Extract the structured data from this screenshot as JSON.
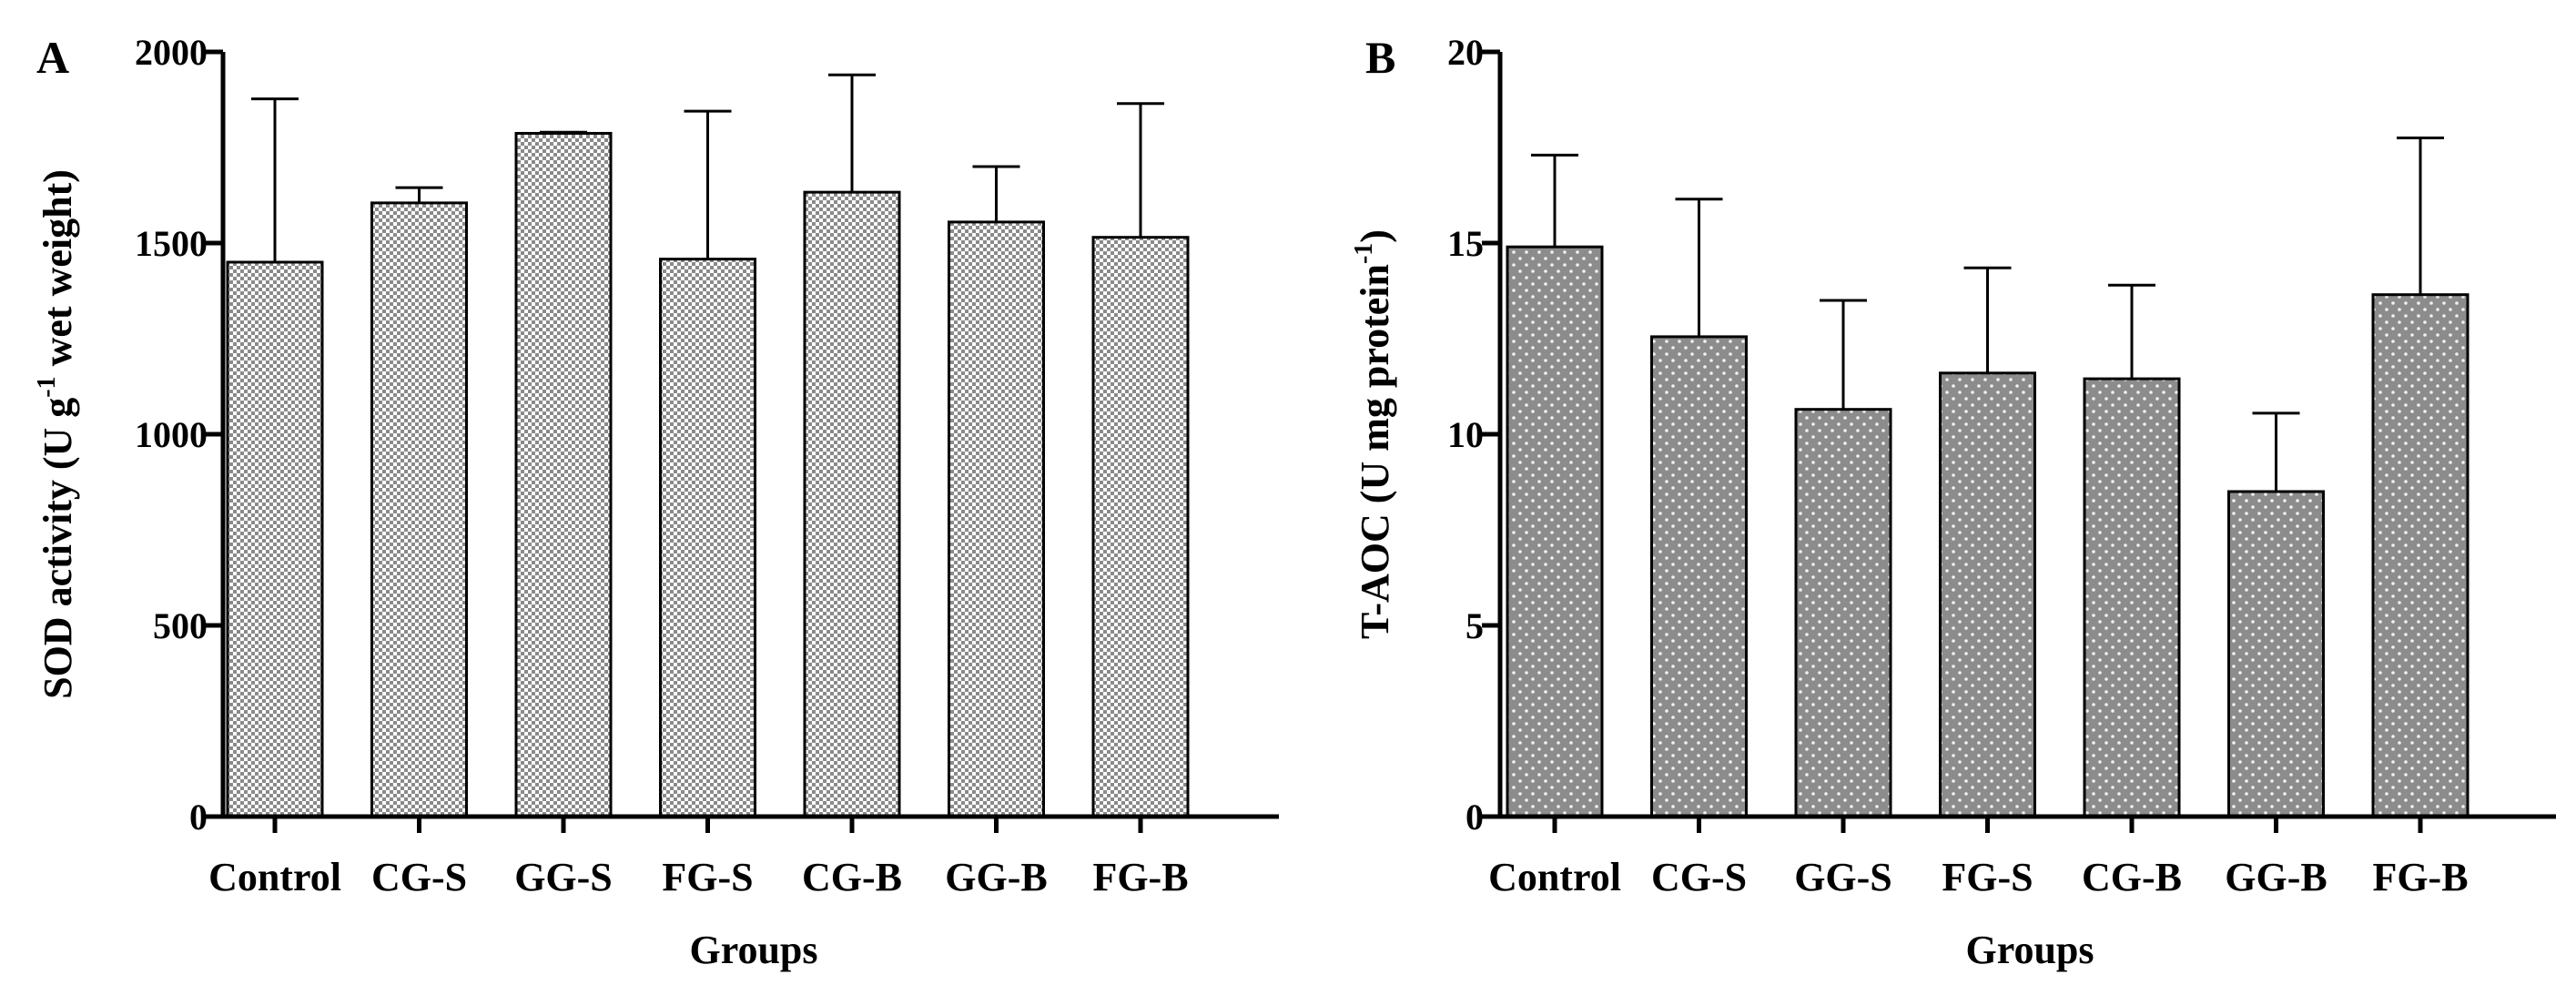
{
  "chart_data": [
    {
      "type": "bar",
      "panel": "A",
      "title": "",
      "xlabel": "Groups",
      "ylabel": {
        "pre": "SOD activity (U g",
        "sup": "-1",
        "post": " wet weight)"
      },
      "ylim": [
        0,
        2000
      ],
      "yticks": [
        0,
        500,
        1000,
        1500,
        2000
      ],
      "categories": [
        "Control",
        "CG-S",
        "GG-S",
        "FG-S",
        "CG-B",
        "GG-B",
        "FG-B"
      ],
      "values": [
        1450,
        1605,
        1787,
        1458,
        1633,
        1555,
        1515
      ],
      "error_upper": [
        1877,
        1645,
        1790,
        1845,
        1940,
        1700,
        1865
      ],
      "bar_style": "checkerboard",
      "bar_color": "#9a9a9a"
    },
    {
      "type": "bar",
      "panel": "B",
      "title": "",
      "xlabel": "Groups",
      "ylabel": {
        "pre": "T-AOC (U mg protein",
        "sup": "-1",
        "post": ")"
      },
      "ylim": [
        0,
        20
      ],
      "yticks": [
        0,
        5,
        10,
        15,
        20
      ],
      "categories": [
        "Control",
        "CG-S",
        "GG-S",
        "FG-S",
        "CG-B",
        "GG-B",
        "FG-B"
      ],
      "values": [
        14.9,
        12.55,
        10.65,
        11.6,
        11.45,
        8.5,
        13.65
      ],
      "error_upper": [
        17.3,
        16.15,
        13.5,
        14.35,
        13.9,
        10.55,
        17.75
      ],
      "bar_style": "dotted",
      "bar_color": "#8c8c8c"
    }
  ]
}
